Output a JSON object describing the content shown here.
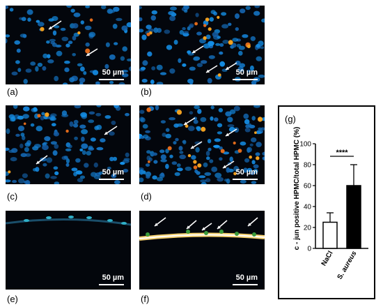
{
  "panels": [
    {
      "label": "(a)",
      "scale": "50 µm"
    },
    {
      "label": "(b)",
      "scale": "50 µm"
    },
    {
      "label": "(c)",
      "scale": "50 µm"
    },
    {
      "label": "(d)",
      "scale": "50 µm"
    },
    {
      "label": "(e)",
      "scale": "50 µm"
    },
    {
      "label": "(f)",
      "scale": "50 µm"
    }
  ],
  "chart_label": "(g)",
  "chart_data": {
    "type": "bar",
    "categories": [
      "NaCl",
      "S. aureus"
    ],
    "values": [
      25,
      60
    ],
    "errors": [
      9,
      20
    ],
    "bar_colors": [
      "#ffffff",
      "#000000"
    ],
    "ylabel": "c - jun positive HPMC/total HPMC (%)",
    "ylim": [
      0,
      100
    ],
    "yticks": [
      0,
      20,
      40,
      60,
      80,
      100
    ],
    "significance": "****"
  }
}
